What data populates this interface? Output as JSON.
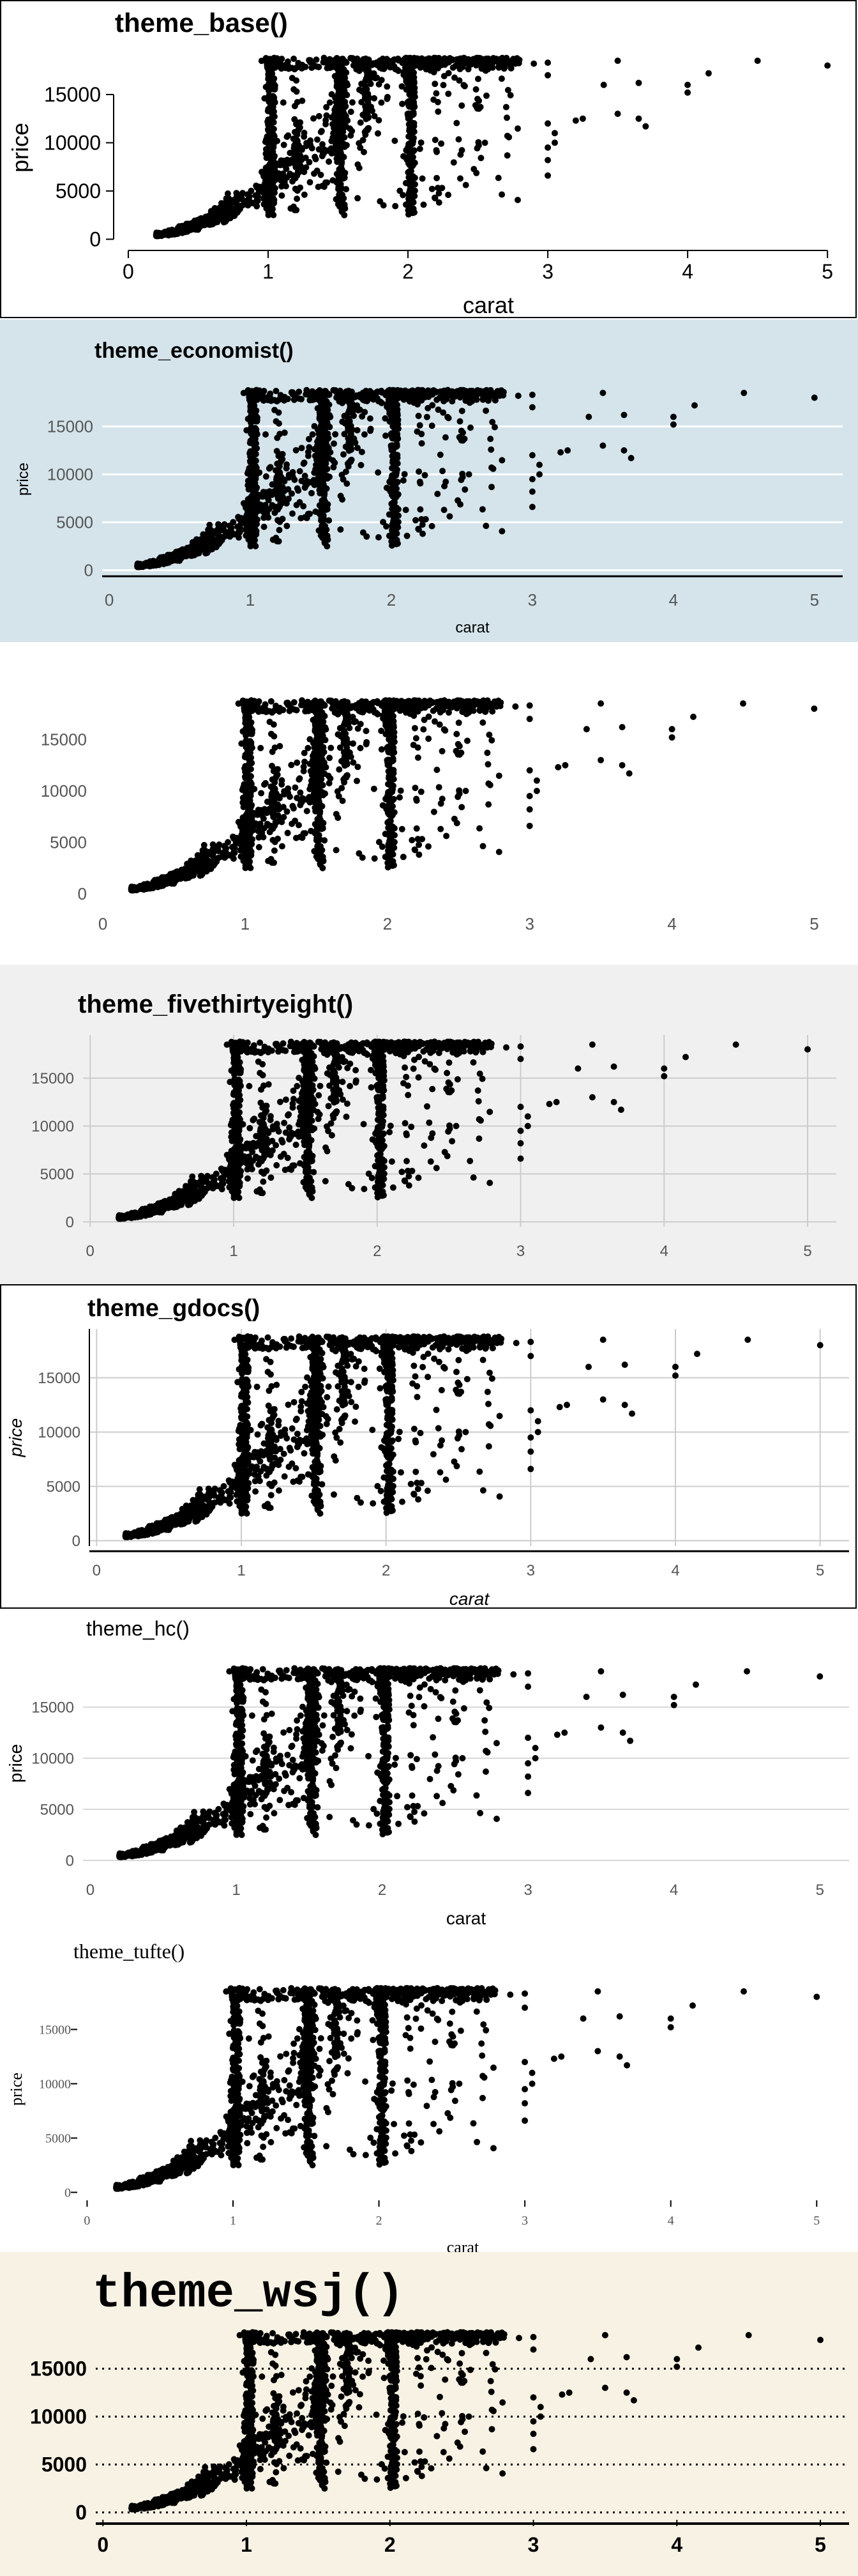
{
  "chart_data": [
    {
      "type": "scatter",
      "theme": "theme_base",
      "title": "theme_base()",
      "xlabel": "carat",
      "ylabel": "price",
      "x_ticks": [
        0,
        1,
        2,
        3,
        4,
        5
      ],
      "y_ticks": [
        0,
        5000,
        10000,
        15000
      ],
      "xlim": [
        -0.05,
        5.2
      ],
      "ylim": [
        -500,
        19500
      ],
      "colors": {
        "background": "#ffffff",
        "panel": "#ffffff",
        "border": "#000000",
        "points": "#000000"
      }
    },
    {
      "type": "scatter",
      "theme": "theme_economist",
      "title": "theme_economist()",
      "xlabel": "carat",
      "ylabel": "price",
      "x_ticks": [
        0,
        1,
        2,
        3,
        4,
        5
      ],
      "y_ticks": [
        0,
        5000,
        10000,
        15000
      ],
      "xlim": [
        -0.05,
        5.2
      ],
      "ylim": [
        -500,
        19500
      ],
      "colors": {
        "background": "#d5e4eb",
        "grid": "#ffffff",
        "points": "#000000"
      }
    },
    {
      "type": "scatter",
      "theme": "theme_few",
      "title": "",
      "xlabel": "",
      "ylabel": "",
      "x_ticks": [
        0,
        1,
        2,
        3,
        4,
        5
      ],
      "y_ticks": [
        0,
        5000,
        10000,
        15000
      ],
      "xlim": [
        -0.05,
        5.2
      ],
      "ylim": [
        -500,
        19500
      ],
      "colors": {
        "background": "#ffffff",
        "points": "#000000"
      }
    },
    {
      "type": "scatter",
      "theme": "theme_fivethirtyeight",
      "title": "theme_fivethirtyeight()",
      "xlabel": "",
      "ylabel": "",
      "x_ticks": [
        0,
        1,
        2,
        3,
        4,
        5
      ],
      "y_ticks": [
        0,
        5000,
        10000,
        15000
      ],
      "xlim": [
        -0.05,
        5.2
      ],
      "ylim": [
        -500,
        19500
      ],
      "colors": {
        "background": "#f0f0f0",
        "grid": "#d2d2d2",
        "points": "#000000"
      }
    },
    {
      "type": "scatter",
      "theme": "theme_gdocs",
      "title": "theme_gdocs()",
      "xlabel": "carat",
      "ylabel": "price",
      "x_ticks": [
        0,
        1,
        2,
        3,
        4,
        5
      ],
      "y_ticks": [
        0,
        5000,
        10000,
        15000
      ],
      "xlim": [
        -0.05,
        5.2
      ],
      "ylim": [
        -500,
        19500
      ],
      "colors": {
        "background": "#ffffff",
        "grid": "#cccccc",
        "border": "#000000",
        "points": "#000000"
      }
    },
    {
      "type": "scatter",
      "theme": "theme_hc",
      "title": "theme_hc()",
      "xlabel": "carat",
      "ylabel": "price",
      "x_ticks": [
        0,
        1,
        2,
        3,
        4,
        5
      ],
      "y_ticks": [
        0,
        5000,
        10000,
        15000
      ],
      "xlim": [
        -0.05,
        5.2
      ],
      "ylim": [
        -500,
        19500
      ],
      "colors": {
        "background": "#ffffff",
        "grid": "#d8d8d8",
        "points": "#000000"
      }
    },
    {
      "type": "scatter",
      "theme": "theme_tufte",
      "title": "theme_tufte()",
      "xlabel": "carat",
      "ylabel": "price",
      "x_ticks": [
        0,
        1,
        2,
        3,
        4,
        5
      ],
      "y_ticks": [
        0,
        5000,
        10000,
        15000
      ],
      "xlim": [
        -0.05,
        5.2
      ],
      "ylim": [
        -500,
        19500
      ],
      "colors": {
        "background": "#ffffff",
        "points": "#000000"
      }
    },
    {
      "type": "scatter",
      "theme": "theme_wsj",
      "title": "theme_wsj()",
      "xlabel": "",
      "ylabel": "",
      "x_ticks": [
        0,
        1,
        2,
        3,
        4,
        5
      ],
      "y_ticks": [
        0,
        5000,
        10000,
        15000
      ],
      "xlim": [
        -0.05,
        5.2
      ],
      "ylim": [
        -500,
        19500
      ],
      "colors": {
        "background": "#f8f2e4",
        "grid": "#000000",
        "points": "#000000"
      }
    }
  ],
  "scatter_data": {
    "x_clusters": [
      0.3,
      0.4,
      0.5,
      0.7,
      1.0,
      1.01,
      1.2,
      1.5,
      1.51,
      1.7,
      2.0,
      2.01,
      2.2,
      2.5
    ],
    "outliers": [
      [
        2.9,
        18200
      ],
      [
        3.0,
        18300
      ],
      [
        3.0,
        17000
      ],
      [
        3.0,
        12000
      ],
      [
        3.0,
        9500
      ],
      [
        3.0,
        8200
      ],
      [
        3.0,
        6600
      ],
      [
        3.05,
        11000
      ],
      [
        3.05,
        10000
      ],
      [
        3.2,
        12300
      ],
      [
        3.25,
        12500
      ],
      [
        3.4,
        16000
      ],
      [
        3.5,
        18500
      ],
      [
        3.5,
        13000
      ],
      [
        3.65,
        16200
      ],
      [
        3.65,
        12500
      ],
      [
        3.7,
        11700
      ],
      [
        4.0,
        16000
      ],
      [
        4.0,
        15200
      ],
      [
        4.15,
        17200
      ],
      [
        4.5,
        18500
      ],
      [
        5.0,
        18000
      ]
    ]
  }
}
